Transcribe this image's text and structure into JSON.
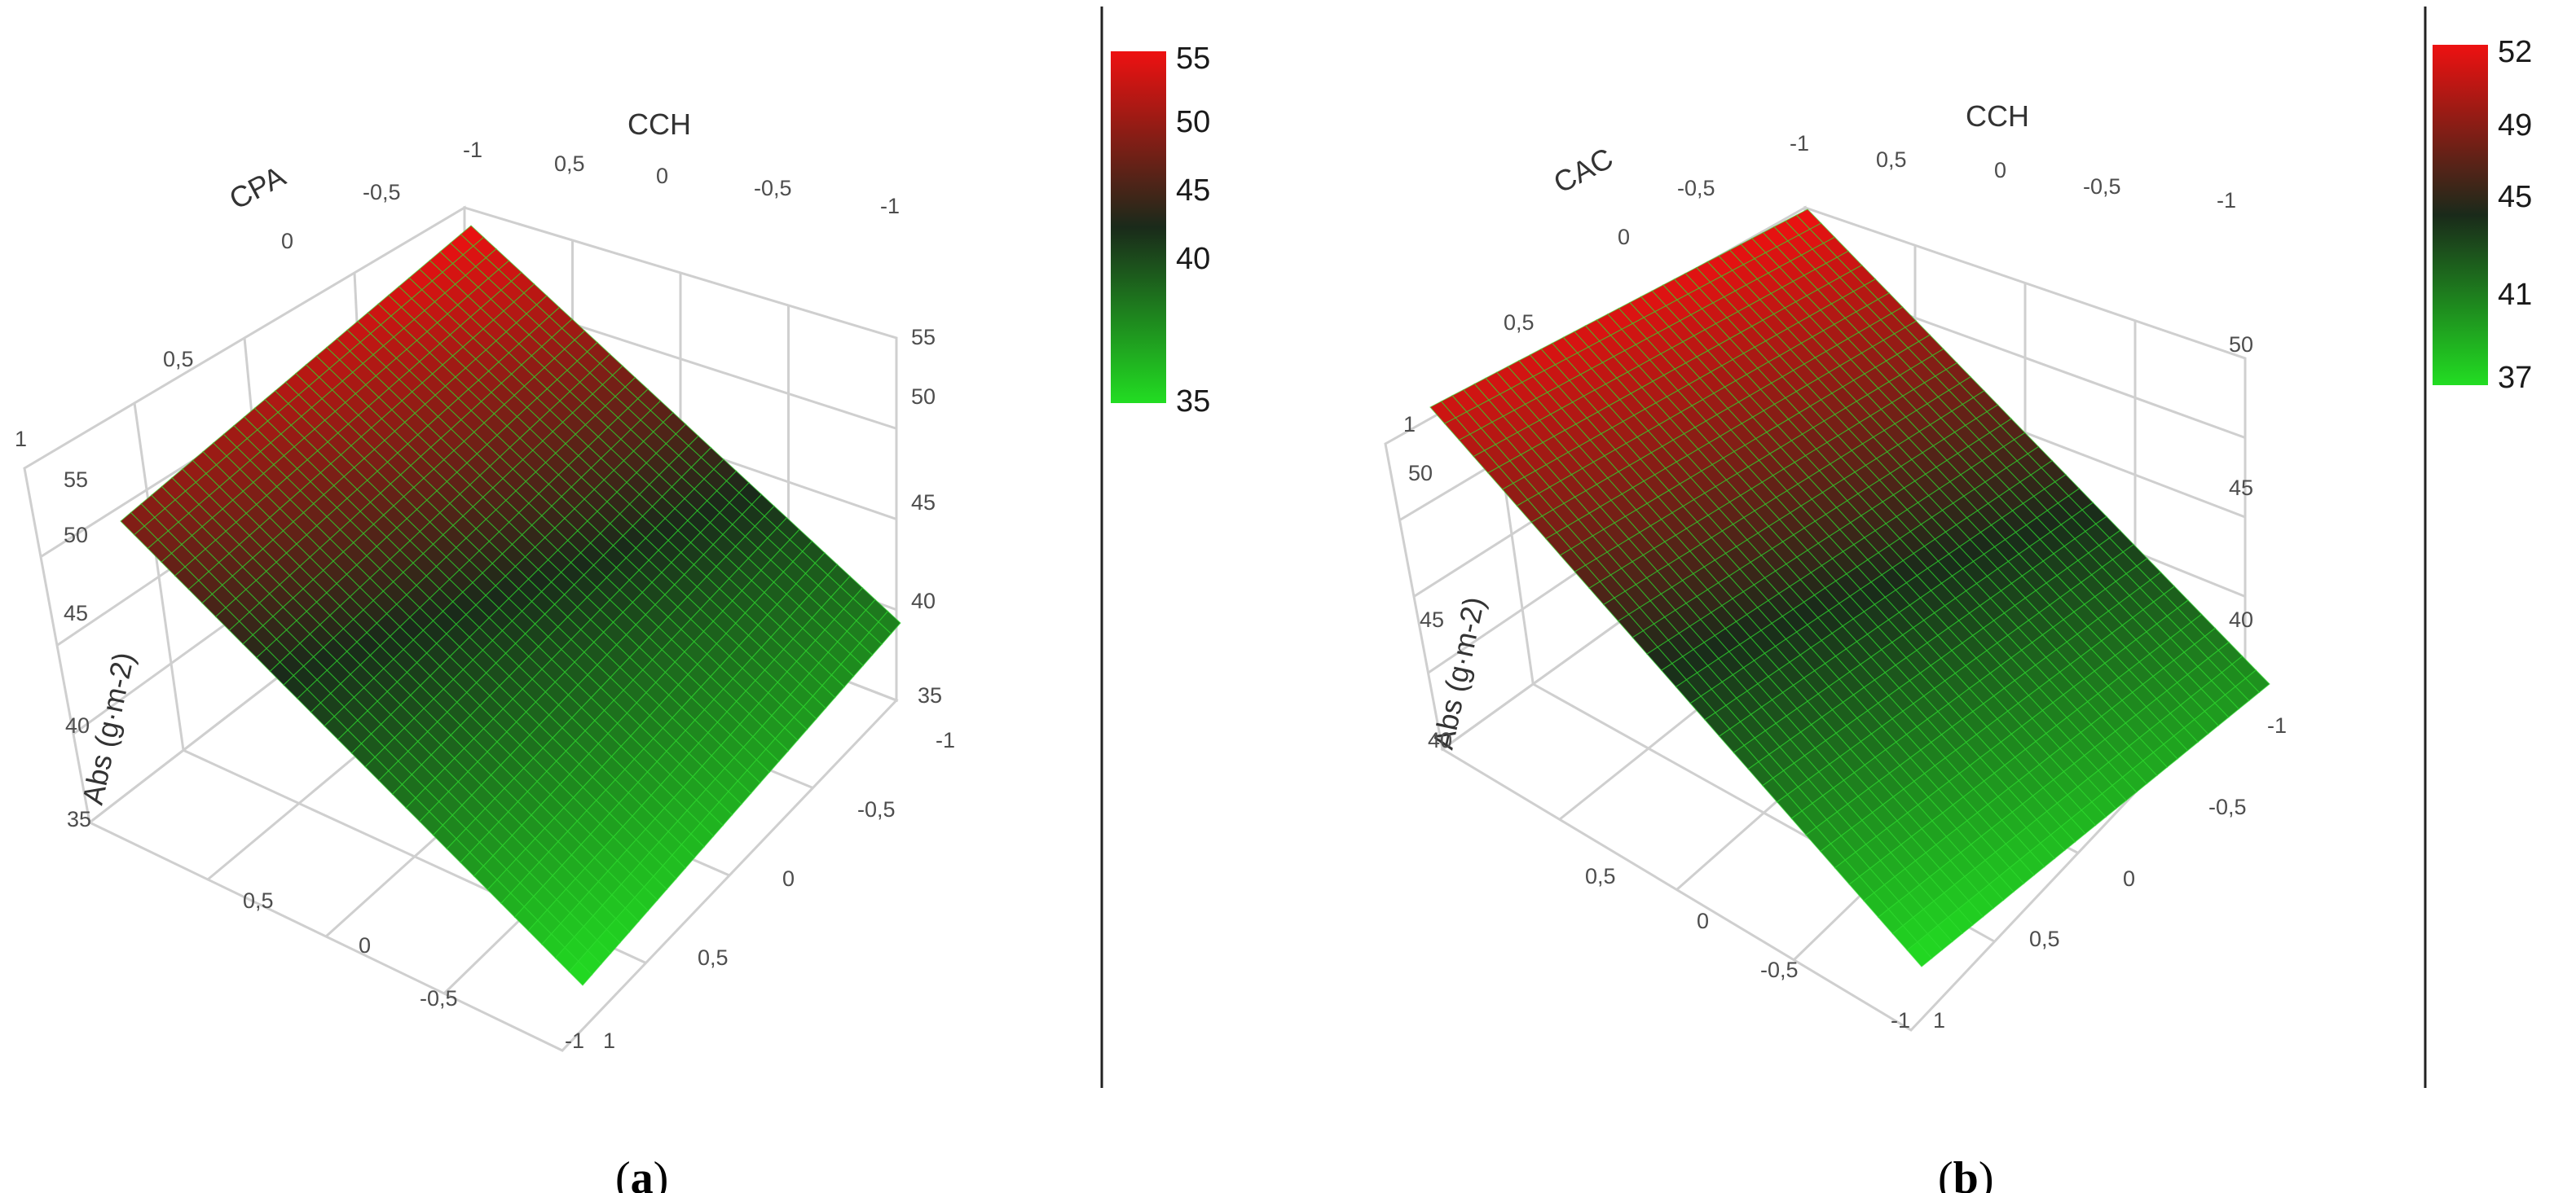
{
  "panels": [
    {
      "caption_letter": "a",
      "colorbar_ticks": [
        "55",
        "50",
        "45",
        "40",
        "35"
      ],
      "colors": {
        "low": "#22dd22",
        "mid": "#1a2a1a",
        "high": "#ee1111"
      }
    },
    {
      "caption_letter": "b",
      "colorbar_ticks": [
        "52",
        "49",
        "45",
        "41",
        "37"
      ],
      "colors": {
        "low": "#22dd22",
        "mid": "#1a2a1a",
        "high": "#ee1111"
      }
    }
  ],
  "chart_data": [
    {
      "type": "surface",
      "title": "",
      "x_axis_label": "CPA",
      "y_axis_label": "CCH",
      "z_axis_label": "Abs (g·m-2)",
      "x_ticks": [
        "1",
        "0,5",
        "0",
        "-0,5",
        "-1"
      ],
      "y_ticks": [
        "-1",
        "0,5",
        "0",
        "-0,5",
        "-1"
      ],
      "z_ticks_left": [
        "55",
        "50",
        "45",
        "40",
        "35"
      ],
      "z_ticks_right": [
        "55",
        "50",
        "45",
        "40",
        "35"
      ],
      "front_ticks_left": [
        "0,5",
        "0",
        "-0,5",
        "-1"
      ],
      "front_ticks_right": [
        "-1",
        "-0,5",
        "0",
        "0,5",
        "1"
      ],
      "xlim": [
        -1,
        1
      ],
      "ylim": [
        -1,
        1
      ],
      "zlim": [
        35,
        55
      ],
      "colorbar_range": [
        35,
        55
      ],
      "corners": [
        {
          "x": 1,
          "y": -1,
          "z": 50
        },
        {
          "x": -1,
          "y": -1,
          "z": 55
        },
        {
          "x": -1,
          "y": 1,
          "z": 40
        },
        {
          "x": 1,
          "y": 1,
          "z": 35
        }
      ]
    },
    {
      "type": "surface",
      "title": "",
      "x_axis_label": "CAC",
      "y_axis_label": "CCH",
      "z_axis_label": "Abs (g·m-2)",
      "x_ticks": [
        "1",
        "0,5",
        "0",
        "-0,5",
        "-1"
      ],
      "y_ticks": [
        "-1",
        "0,5",
        "0",
        "-0,5",
        "-1"
      ],
      "z_ticks_left": [
        "50",
        "45",
        "40"
      ],
      "z_ticks_right": [
        "50",
        "45",
        "40"
      ],
      "front_ticks_left": [
        "0,5",
        "0",
        "-0,5",
        "-1"
      ],
      "front_ticks_right": [
        "-1",
        "-0,5",
        "0",
        "0,5",
        "1"
      ],
      "xlim": [
        -1,
        1
      ],
      "ylim": [
        -1,
        1
      ],
      "zlim": [
        37,
        52
      ],
      "colorbar_range": [
        37,
        52
      ],
      "corners": [
        {
          "x": 1,
          "y": -1,
          "z": 51
        },
        {
          "x": -1,
          "y": -1,
          "z": 52
        },
        {
          "x": -1,
          "y": 1,
          "z": 40
        },
        {
          "x": 1,
          "y": 1,
          "z": 37
        }
      ]
    }
  ]
}
